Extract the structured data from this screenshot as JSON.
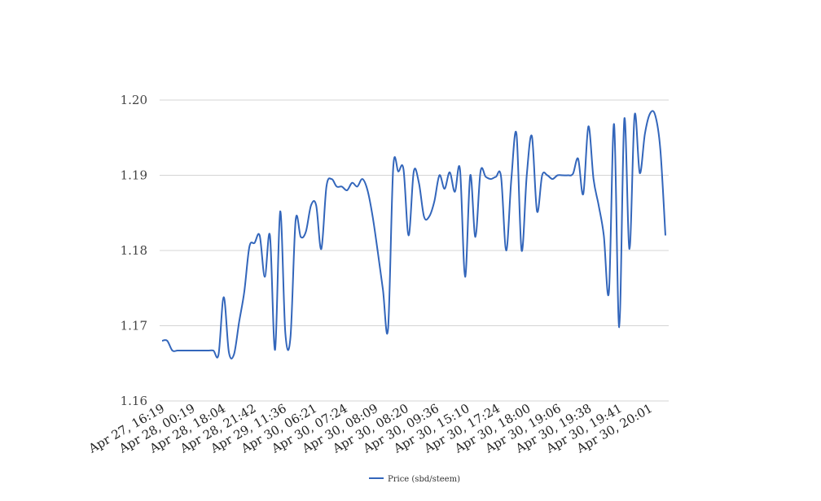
{
  "chart_data": {
    "type": "line",
    "title": "",
    "xlabel": "",
    "ylabel": "",
    "ylim": [
      1.16,
      1.2
    ],
    "yticks": [
      "1.16",
      "1.17",
      "1.18",
      "1.19",
      "1.20"
    ],
    "grid": true,
    "legend_position": "bottom-center",
    "x_tick_labels": [
      "Apr 27, 16:19",
      "Apr 28, 00:19",
      "Apr 28, 18:04",
      "Apr 28, 21:42",
      "Apr 29, 11:36",
      "Apr 30, 06:21",
      "Apr 30, 07:24",
      "Apr 30, 08:09",
      "Apr 30, 08:20",
      "Apr 30, 09:36",
      "Apr 30, 15:10",
      "Apr 30, 17:24",
      "Apr 30, 18:00",
      "Apr 30, 19:06",
      "Apr 30, 19:38",
      "Apr 30, 19:41",
      "Apr 30, 20:01"
    ],
    "series": [
      {
        "name": "Price (sbd/steem)",
        "color": "#3366bb",
        "values": [
          1.168,
          1.168,
          1.1667,
          1.1667,
          1.1667,
          1.1667,
          1.1667,
          1.1667,
          1.1667,
          1.1667,
          1.1667,
          1.1662,
          1.1738,
          1.1665,
          1.1662,
          1.1705,
          1.1745,
          1.1805,
          1.181,
          1.182,
          1.1765,
          1.182,
          1.1668,
          1.1852,
          1.169,
          1.1685,
          1.184,
          1.1818,
          1.1825,
          1.186,
          1.186,
          1.1802,
          1.1885,
          1.1895,
          1.1885,
          1.1885,
          1.188,
          1.189,
          1.1885,
          1.1895,
          1.188,
          1.1845,
          1.1798,
          1.1748,
          1.1696,
          1.191,
          1.1905,
          1.1908,
          1.182,
          1.1905,
          1.189,
          1.1845,
          1.1845,
          1.1865,
          1.19,
          1.1882,
          1.1904,
          1.1878,
          1.1908,
          1.1765,
          1.19,
          1.1818,
          1.1905,
          1.1898,
          1.1895,
          1.1898,
          1.1898,
          1.18,
          1.1895,
          1.1955,
          1.18,
          1.19,
          1.1952,
          1.1852,
          1.19,
          1.19,
          1.1895,
          1.19,
          1.19,
          1.19,
          1.1902,
          1.1922,
          1.1875,
          1.1965,
          1.1895,
          1.186,
          1.182,
          1.1745,
          1.1968,
          1.1698,
          1.1975,
          1.1802,
          1.198,
          1.1903,
          1.1955,
          1.1982,
          1.198,
          1.1935,
          1.182
        ]
      }
    ]
  }
}
